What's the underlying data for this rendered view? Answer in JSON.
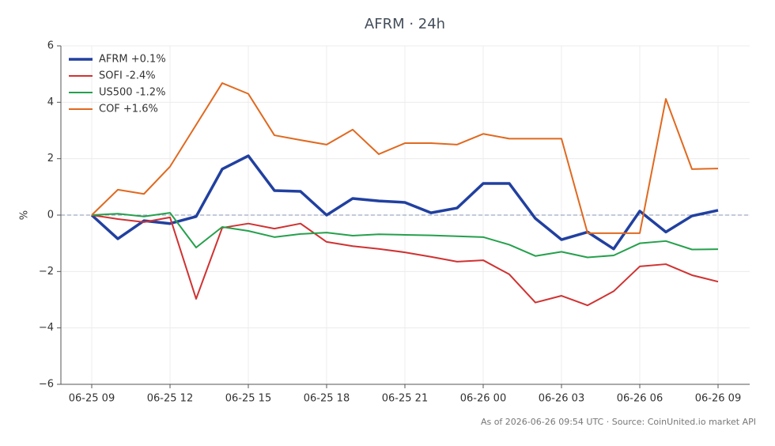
{
  "chart_data": {
    "type": "line",
    "title": "AFRM · 24h",
    "ylabel": "%",
    "note": "As of 2026-06-26 09:54 UTC · Source: CoinUnited.io market API",
    "categories": [
      "06-25 09",
      null,
      null,
      "06-25 12",
      null,
      null,
      "06-25 15",
      null,
      null,
      "06-25 18",
      null,
      null,
      "06-25 21",
      null,
      null,
      "06-26 00",
      null,
      null,
      "06-26 03",
      null,
      null,
      "06-26 06",
      null,
      null,
      "06-26 09"
    ],
    "series": [
      {
        "name": "AFRM +0.1%",
        "color": "#2140a0",
        "width": 3.5,
        "values": [
          0,
          -0.84,
          -0.2,
          -0.3,
          -0.05,
          1.63,
          2.1,
          0.87,
          0.84,
          0,
          0.59,
          0.5,
          0.45,
          0.08,
          0.25,
          1.12,
          1.12,
          -0.12,
          -0.87,
          -0.6,
          -1.2,
          0.14,
          -0.6,
          -0.03,
          0.17
        ]
      },
      {
        "name": "SOFI -2.4%",
        "color": "#d03232",
        "width": 2,
        "values": [
          0,
          -0.14,
          -0.25,
          -0.08,
          -2.97,
          -0.45,
          -0.3,
          -0.48,
          -0.3,
          -0.95,
          -1.1,
          -1.2,
          -1.32,
          -1.48,
          -1.65,
          -1.6,
          -2.1,
          -3.1,
          -2.86,
          -3.2,
          -2.7,
          -1.82,
          -1.74,
          -2.13,
          -2.36
        ]
      },
      {
        "name": "US500 -1.2%",
        "color": "#25a04c",
        "width": 2,
        "values": [
          0,
          0.05,
          -0.05,
          0.08,
          -1.15,
          -0.42,
          -0.56,
          -0.78,
          -0.67,
          -0.62,
          -0.73,
          -0.68,
          -0.7,
          -0.72,
          -0.75,
          -0.78,
          -1.05,
          -1.45,
          -1.3,
          -1.5,
          -1.43,
          -1.0,
          -0.92,
          -1.22,
          -1.21
        ]
      },
      {
        "name": "COF +1.6%",
        "color": "#e0691f",
        "width": 2,
        "values": [
          0,
          0.9,
          0.75,
          1.72,
          3.2,
          4.68,
          4.3,
          2.83,
          2.66,
          2.5,
          3.03,
          2.16,
          2.55,
          2.55,
          2.5,
          2.88,
          2.71,
          2.71,
          2.71,
          -0.64,
          -0.64,
          -0.64,
          4.12,
          1.63,
          1.65
        ]
      }
    ],
    "ylim": [
      -6,
      6
    ],
    "yticks": [
      {
        "value": -6,
        "label": "−6"
      },
      {
        "value": -4,
        "label": "−4"
      },
      {
        "value": -2,
        "label": "−2"
      },
      0,
      2,
      4,
      6
    ],
    "grid": true,
    "legend": "upper left"
  }
}
